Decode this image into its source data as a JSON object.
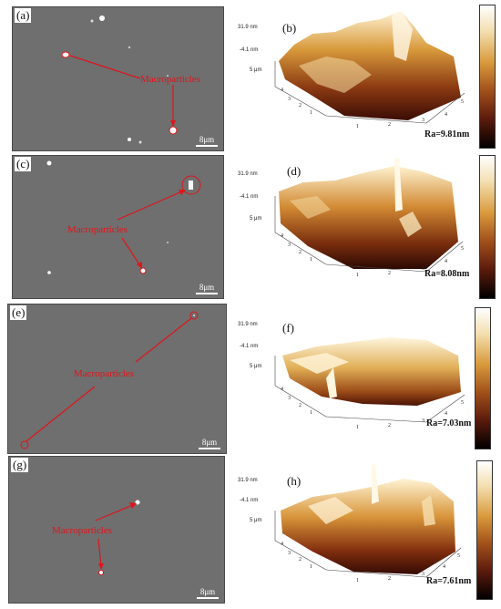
{
  "rows": [
    {
      "sem": {
        "label": "(a)",
        "annotation": "Macroparticles",
        "scale": "8μm"
      },
      "afm": {
        "label": "(b)",
        "z_top": "31.9 nm",
        "z_mid": "-4.1 nm",
        "y_axis": "5 μm",
        "ra": "Ra=9.81nm"
      }
    },
    {
      "sem": {
        "label": "(c)",
        "annotation": "Macroparticles",
        "scale": "8μm"
      },
      "afm": {
        "label": "(d)",
        "z_top": "31.9 nm",
        "z_mid": "-4.1 nm",
        "y_axis": "5 μm",
        "ra": "Ra=8.08nm"
      }
    },
    {
      "sem": {
        "label": "(e)",
        "annotation": "Macroparticles",
        "scale": "8μm"
      },
      "afm": {
        "label": "(f)",
        "z_top": "31.9 nm",
        "z_mid": "-4.1 nm",
        "y_axis": "5 μm",
        "ra": "Ra=7.03nm"
      }
    },
    {
      "sem": {
        "label": "(g)",
        "annotation": "Macroparticles",
        "scale": "8μm"
      },
      "afm": {
        "label": "(h)",
        "z_top": "31.9 nm",
        "z_mid": "-4.1 nm",
        "y_axis": "5 μm",
        "ra": "Ra=7.61nm"
      }
    }
  ],
  "colors": {
    "annotation": "#e0141a",
    "sem_background": "#6f6f6f",
    "colorbar": "afm-hot"
  }
}
